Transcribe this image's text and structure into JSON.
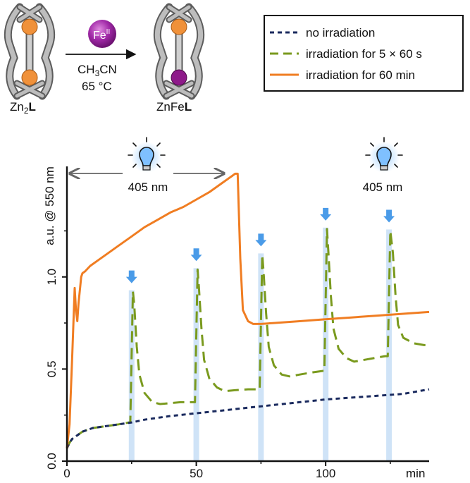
{
  "scheme": {
    "reactant_label": "Zn",
    "reactant_sub": "2",
    "reactant_bold": "L",
    "reagent_text": "Fe",
    "reagent_sup": "II",
    "conditions_line1": "CH",
    "conditions_sub": "3",
    "conditions_line1_end": "CN",
    "conditions_line2": "65 °C",
    "product_label": "ZnFe",
    "product_bold": "L",
    "colors": {
      "zn": "#f0913a",
      "fe": "#8e1a8a",
      "frame": "#8c8c8c"
    }
  },
  "annotations": {
    "bulb_label_left": "405 nm",
    "bulb_label_right": "405 nm"
  },
  "chart_data": {
    "type": "line",
    "xlabel": "min",
    "ylabel": "a.u. @ 550 nm",
    "xlim": [
      0,
      140
    ],
    "ylim": [
      0,
      1.6
    ],
    "xticks": [
      0,
      50,
      100
    ],
    "yticks": [
      0.0,
      0.5,
      1.0
    ],
    "ytick_labels": [
      "0.0",
      "0.5",
      "1.0"
    ],
    "legend_position": "top-right",
    "irradiation_pulses_min": [
      24.5,
      49.5,
      74.5,
      99.5,
      124
    ],
    "series": [
      {
        "name": "no irradiation",
        "color": "#1a2a5e",
        "style": "dotted",
        "x": [
          0,
          1,
          2,
          4,
          6,
          10,
          15,
          20,
          25,
          30,
          40,
          50,
          60,
          70,
          80,
          90,
          100,
          110,
          120,
          130,
          140
        ],
        "y": [
          0.07,
          0.1,
          0.12,
          0.14,
          0.16,
          0.18,
          0.19,
          0.2,
          0.21,
          0.225,
          0.245,
          0.26,
          0.275,
          0.29,
          0.305,
          0.32,
          0.335,
          0.345,
          0.355,
          0.365,
          0.39
        ]
      },
      {
        "name": "irradiation for 5 × 60 s",
        "color": "#7a9a1e",
        "style": "dashed",
        "x": [
          0,
          1,
          2,
          4,
          6,
          10,
          15,
          20,
          24,
          24.5,
          25.5,
          26,
          27,
          28,
          30,
          33,
          36,
          40,
          44,
          49,
          49.5,
          50.5,
          51,
          52,
          53,
          55,
          58,
          61,
          65,
          70,
          74,
          74.5,
          75.5,
          76,
          77,
          78,
          80,
          83,
          86,
          90,
          94,
          99,
          99.5,
          100.5,
          101,
          102,
          103,
          105,
          108,
          111,
          115,
          119,
          123,
          124,
          125,
          126,
          127,
          128,
          130,
          134,
          138,
          140
        ],
        "y": [
          0.07,
          0.1,
          0.12,
          0.14,
          0.16,
          0.18,
          0.19,
          0.2,
          0.21,
          0.21,
          0.92,
          0.85,
          0.62,
          0.47,
          0.37,
          0.32,
          0.31,
          0.315,
          0.32,
          0.32,
          0.32,
          1.04,
          0.95,
          0.72,
          0.55,
          0.45,
          0.4,
          0.38,
          0.385,
          0.39,
          0.39,
          0.39,
          1.12,
          1.03,
          0.8,
          0.62,
          0.52,
          0.47,
          0.46,
          0.47,
          0.48,
          0.49,
          0.49,
          1.26,
          1.15,
          0.9,
          0.72,
          0.61,
          0.56,
          0.54,
          0.55,
          0.56,
          0.57,
          0.57,
          1.25,
          1.13,
          0.9,
          0.74,
          0.67,
          0.64,
          0.63,
          0.63
        ]
      },
      {
        "name": "irradiation for 60 min",
        "color": "#f07d22",
        "style": "solid",
        "x": [
          0,
          1,
          2,
          3,
          3.5,
          4,
          4.5,
          5,
          5.5,
          6,
          7,
          9,
          12,
          16,
          20,
          25,
          30,
          35,
          40,
          45,
          50,
          55,
          60,
          63,
          64,
          65,
          66,
          67,
          68,
          70,
          72,
          75,
          80,
          90,
          100,
          110,
          120,
          130,
          140
        ],
        "y": [
          0.07,
          0.2,
          0.55,
          0.94,
          0.82,
          0.76,
          0.86,
          0.93,
          1.0,
          1.02,
          1.03,
          1.06,
          1.09,
          1.13,
          1.17,
          1.22,
          1.27,
          1.31,
          1.35,
          1.38,
          1.42,
          1.46,
          1.51,
          1.54,
          1.55,
          1.56,
          1.56,
          1.1,
          0.82,
          0.76,
          0.745,
          0.745,
          0.75,
          0.76,
          0.77,
          0.78,
          0.79,
          0.8,
          0.81
        ]
      }
    ]
  }
}
